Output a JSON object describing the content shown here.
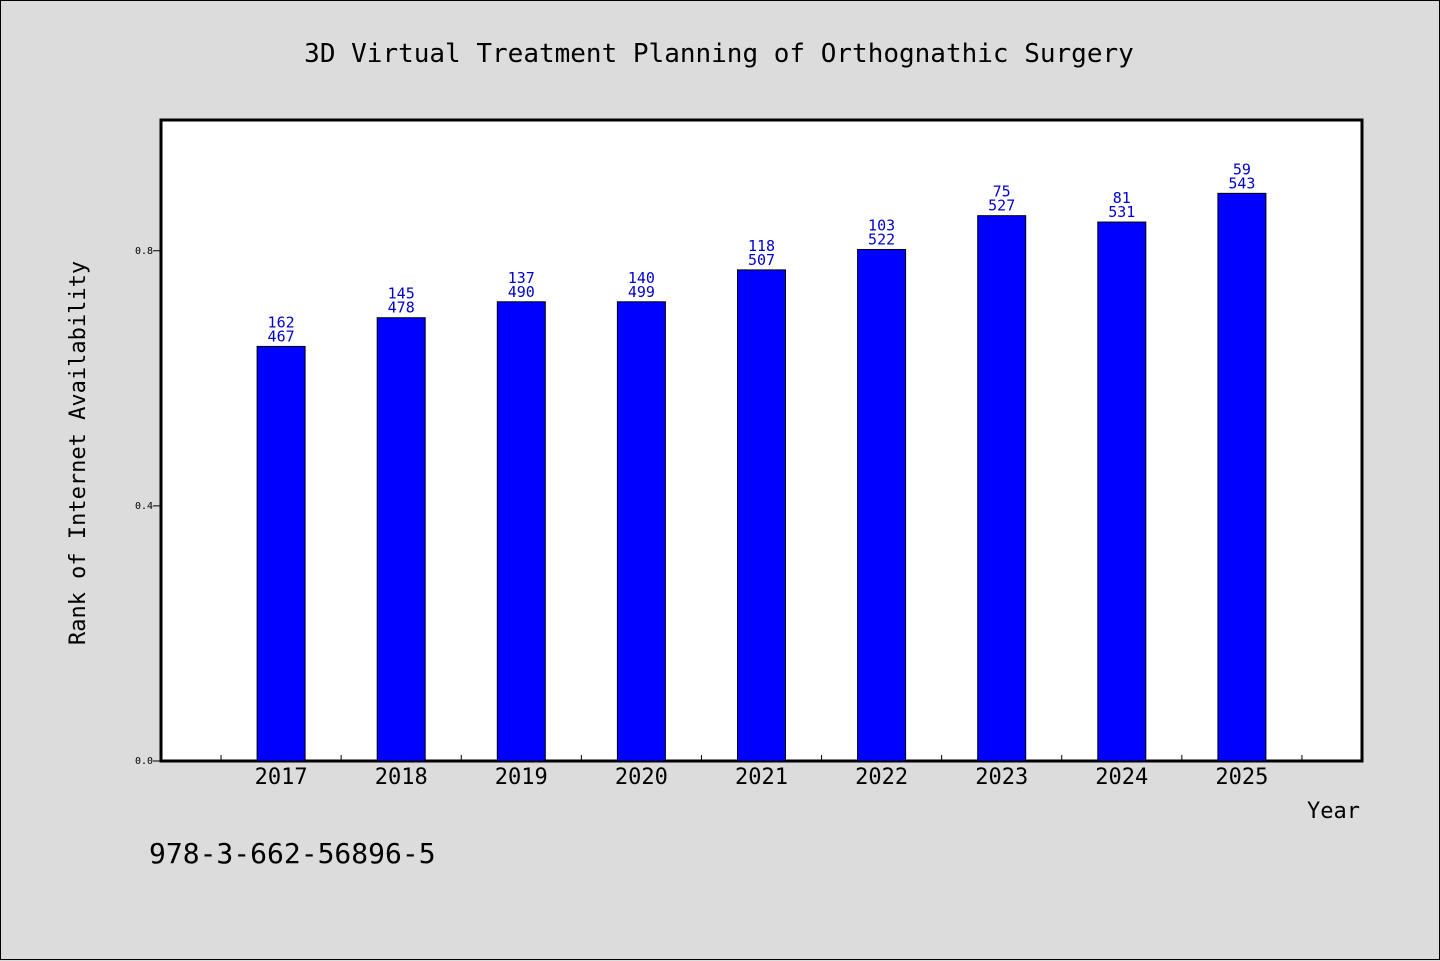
{
  "chart_data": {
    "type": "bar",
    "title": "3D Virtual Treatment Planning of Orthognathic Surgery",
    "xlabel": "Year",
    "ylabel": "Rank of Internet Availability",
    "categories": [
      "2017",
      "2018",
      "2019",
      "2020",
      "2021",
      "2022",
      "2023",
      "2024",
      "2025"
    ],
    "values": [
      0.65,
      0.695,
      0.72,
      0.72,
      0.77,
      0.802,
      0.855,
      0.845,
      0.89
    ],
    "bar_labels_top": [
      "162",
      "145",
      "137",
      "140",
      "118",
      "103",
      "75",
      "81",
      "59"
    ],
    "bar_labels_bottom": [
      "467",
      "478",
      "490",
      "499",
      "507",
      "522",
      "527",
      "531",
      "543"
    ],
    "yticks": [
      "0.0",
      "0.4",
      "0.8"
    ],
    "ytick_values": [
      0.0,
      0.4,
      0.8
    ],
    "ylim": [
      0,
      1.005
    ],
    "grid": false,
    "legend": "none",
    "bar_color": "#0000ff",
    "label_color": "#0000cc"
  },
  "footer_text": "978-3-662-56896-5"
}
